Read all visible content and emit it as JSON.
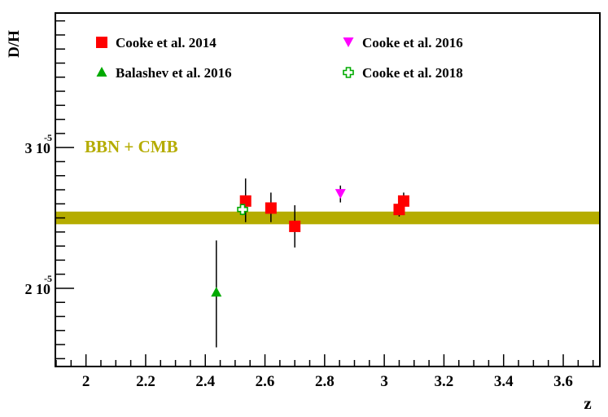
{
  "chart_data": {
    "type": "scatter",
    "xlabel": "z",
    "ylabel": "D/H",
    "xlim": [
      1.9,
      3.72
    ],
    "ylim": [
      1.45,
      3.95
    ],
    "y_unit_scale": "10^-5",
    "x_ticks": [
      2,
      2.2,
      2.4,
      2.6,
      2.8,
      3,
      3.2,
      3.4,
      3.6
    ],
    "x_tick_labels": [
      "2",
      "2.2",
      "2.4",
      "2.6",
      "2.8",
      "3",
      "3.2",
      "3.4",
      "3.6"
    ],
    "y_ticks": [
      2,
      3
    ],
    "y_tick_labels": [
      "2 10",
      "3 10"
    ],
    "y_tick_exponent": "-5",
    "band": {
      "label": "BBN + CMB",
      "y_range": [
        2.455,
        2.545
      ],
      "color": "#b5ac00"
    },
    "legend_placement": "top",
    "series": [
      {
        "name": "Cooke et al. 2014",
        "marker": "square",
        "color": "#ff0000",
        "points": [
          {
            "x": 2.535,
            "y": 2.62,
            "yerr_low": 2.47,
            "yerr_high": 2.78
          },
          {
            "x": 2.62,
            "y": 2.57,
            "yerr_low": 2.47,
            "yerr_high": 2.68
          },
          {
            "x": 2.7,
            "y": 2.44,
            "yerr_low": 2.29,
            "yerr_high": 2.59
          },
          {
            "x": 3.05,
            "y": 2.56,
            "yerr_low": 2.51,
            "yerr_high": 2.61
          },
          {
            "x": 3.065,
            "y": 2.62,
            "yerr_low": 2.56,
            "yerr_high": 2.68
          }
        ]
      },
      {
        "name": "Cooke et al. 2016",
        "marker": "triangle-down",
        "color": "#ff00ff",
        "points": [
          {
            "x": 2.853,
            "y": 2.67,
            "yerr_low": 2.61,
            "yerr_high": 2.73
          }
        ]
      },
      {
        "name": "Balashev et al. 2016",
        "marker": "triangle-up",
        "color": "#00aa00",
        "points": [
          {
            "x": 2.437,
            "y": 1.97,
            "yerr_low": 1.58,
            "yerr_high": 2.34
          }
        ]
      },
      {
        "name": "Cooke et al. 2018",
        "marker": "open-cross",
        "color": "#00aa00",
        "points": [
          {
            "x": 2.525,
            "y": 2.56,
            "yerr_low": 2.52,
            "yerr_high": 2.6
          }
        ]
      }
    ]
  }
}
